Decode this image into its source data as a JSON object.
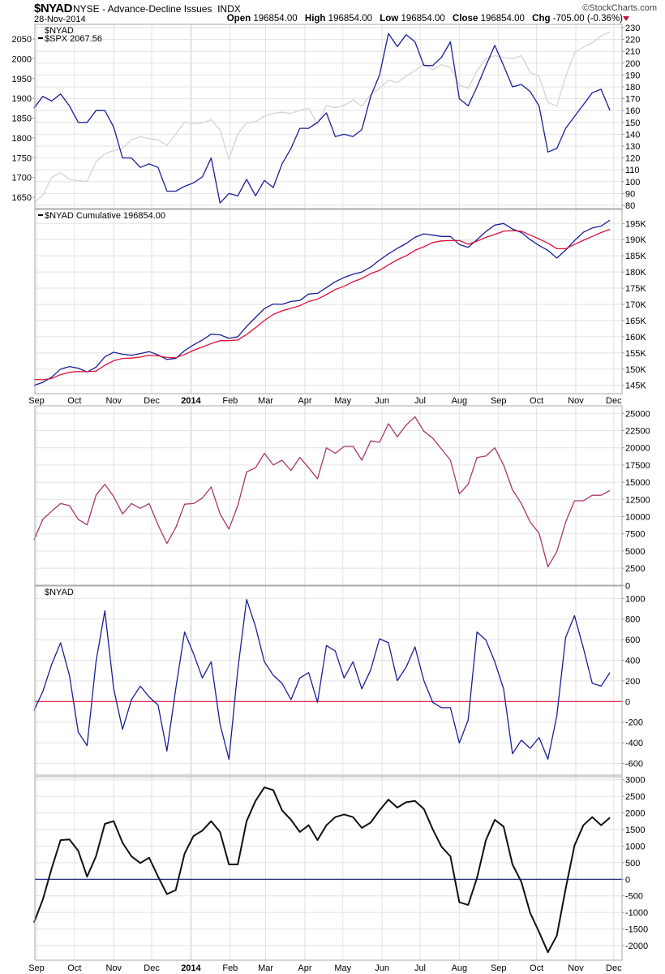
{
  "header": {
    "symbol": "$NYAD",
    "description": "NYSE - Advance-Decline Issues",
    "exchange": "INDX",
    "date": "28-Nov-2014",
    "brand": "©StockCharts.com",
    "quote": [
      {
        "label": "Open",
        "value": "196854.00"
      },
      {
        "label": "High",
        "value": "196854.00"
      },
      {
        "label": "Low",
        "value": "196854.00"
      },
      {
        "label": "Close",
        "value": "196854.00"
      },
      {
        "label": "Chg",
        "value": "-705.00 (-0.36%)"
      }
    ],
    "chg_direction": "down",
    "down_color": "#c0103a"
  },
  "x_axis": {
    "ticks": [
      {
        "label": "Sep",
        "date": "2013-09-01"
      },
      {
        "label": "Oct",
        "date": "2013-10-01"
      },
      {
        "label": "Nov",
        "date": "2013-11-01"
      },
      {
        "label": "Dec",
        "date": "2013-12-01"
      },
      {
        "label": "2014",
        "date": "2014-01-01",
        "bold": true
      },
      {
        "label": "Feb",
        "date": "2014-02-01"
      },
      {
        "label": "Mar",
        "date": "2014-03-01"
      },
      {
        "label": "Apr",
        "date": "2014-04-01"
      },
      {
        "label": "May",
        "date": "2014-05-01"
      },
      {
        "label": "Jun",
        "date": "2014-06-01"
      },
      {
        "label": "Jul",
        "date": "2014-07-01"
      },
      {
        "label": "Aug",
        "date": "2014-08-01"
      },
      {
        "label": "Sep",
        "date": "2014-09-01"
      },
      {
        "label": "Oct",
        "date": "2014-10-01"
      },
      {
        "label": "Nov",
        "date": "2014-11-01"
      },
      {
        "label": "Dec",
        "date": "2014-12-01"
      }
    ]
  },
  "chart_data": [
    {
      "type": "line",
      "legend": [
        {
          "text": "$NYAD",
          "marker": false
        },
        {
          "text": "$SPX 2067.56",
          "marker": true
        }
      ],
      "grid": true,
      "right_axis": {
        "ticks": [
          230,
          220,
          210,
          200,
          190,
          180,
          170,
          160,
          150,
          140,
          130,
          120,
          110,
          100,
          90,
          80
        ],
        "range": [
          80,
          230
        ]
      },
      "left_axis": {
        "ticks": [
          2050,
          2000,
          1950,
          1900,
          1850,
          1800,
          1750,
          1700,
          1650
        ],
        "range": [
          1650,
          2050
        ]
      },
      "dates": [
        "2013-08-30",
        "2013-09-06",
        "2013-09-13",
        "2013-09-20",
        "2013-09-27",
        "2013-10-04",
        "2013-10-11",
        "2013-10-18",
        "2013-10-25",
        "2013-11-01",
        "2013-11-08",
        "2013-11-15",
        "2013-11-22",
        "2013-11-29",
        "2013-12-06",
        "2013-12-13",
        "2013-12-20",
        "2013-12-27",
        "2014-01-03",
        "2014-01-10",
        "2014-01-17",
        "2014-01-24",
        "2014-01-31",
        "2014-02-07",
        "2014-02-14",
        "2014-02-21",
        "2014-02-28",
        "2014-03-07",
        "2014-03-14",
        "2014-03-21",
        "2014-03-28",
        "2014-04-04",
        "2014-04-11",
        "2014-04-18",
        "2014-04-25",
        "2014-05-02",
        "2014-05-09",
        "2014-05-16",
        "2014-05-23",
        "2014-05-30",
        "2014-06-06",
        "2014-06-13",
        "2014-06-20",
        "2014-06-27",
        "2014-07-04",
        "2014-07-11",
        "2014-07-18",
        "2014-07-25",
        "2014-08-01",
        "2014-08-08",
        "2014-08-15",
        "2014-08-22",
        "2014-08-29",
        "2014-09-05",
        "2014-09-12",
        "2014-09-19",
        "2014-09-26",
        "2014-10-03",
        "2014-10-10",
        "2014-10-17",
        "2014-10-24",
        "2014-10-31",
        "2014-11-07",
        "2014-11-14",
        "2014-11-21",
        "2014-11-28"
      ],
      "series": [
        {
          "name": "$SPX",
          "axis": "left",
          "color": "#d4d4d4",
          "values": [
            1636,
            1655,
            1700,
            1712,
            1695,
            1692,
            1690,
            1740,
            1760,
            1768,
            1774,
            1795,
            1803,
            1798,
            1795,
            1781,
            1810,
            1840,
            1836,
            1838,
            1846,
            1820,
            1746,
            1810,
            1838,
            1841,
            1855,
            1862,
            1865,
            1862,
            1870,
            1875,
            1835,
            1882,
            1876,
            1882,
            1896,
            1880,
            1910,
            1925,
            1946,
            1940,
            1956,
            1970,
            1987,
            1972,
            1985,
            1978,
            1933,
            1925,
            1970,
            2000,
            2008,
            2003,
            2000,
            2008,
            1965,
            1955,
            1890,
            1880,
            1955,
            2015,
            2030,
            2040,
            2058,
            2067.56
          ]
        },
        {
          "name": "$NYAD",
          "axis": "right",
          "color": "#1a1f96",
          "values": [
            162,
            172,
            168,
            174,
            164,
            150,
            150,
            160,
            160,
            146,
            120,
            120,
            112,
            115,
            112,
            92,
            92,
            96,
            99,
            104,
            120,
            82,
            90,
            88,
            102,
            88,
            101,
            95,
            115,
            128,
            145,
            145,
            150,
            158,
            138,
            140,
            138,
            144,
            172,
            190,
            225,
            214,
            224,
            218,
            198,
            198,
            205,
            218,
            170,
            164,
            180,
            198,
            215,
            198,
            180,
            182,
            176,
            164,
            125,
            128,
            145,
            155,
            165,
            175,
            178,
            160
          ]
        }
      ]
    },
    {
      "type": "line",
      "legend": [
        {
          "text": "$NYAD Cumulative 196854.00",
          "marker": true
        }
      ],
      "grid": true,
      "right_axis": {
        "ticks": [
          195000,
          190000,
          185000,
          180000,
          175000,
          170000,
          165000,
          160000,
          155000,
          150000,
          145000
        ],
        "labels": [
          "195K",
          "190K",
          "185K",
          "180K",
          "175K",
          "170K",
          "165K",
          "160K",
          "155K",
          "150K",
          "145K"
        ],
        "range": [
          145000,
          195000
        ]
      },
      "series": [
        {
          "color": "#1a1f96",
          "values": [
            145000,
            145900,
            147500,
            150000,
            150800,
            150300,
            149100,
            150600,
            153800,
            155200,
            154600,
            154300,
            154800,
            155400,
            154400,
            153000,
            153300,
            155700,
            157500,
            159000,
            160800,
            160600,
            159500,
            160000,
            163200,
            166000,
            168700,
            170100,
            170000,
            170900,
            171200,
            173200,
            173400,
            175200,
            177000,
            178300,
            179300,
            180000,
            181500,
            183700,
            185600,
            187300,
            188800,
            190700,
            191800,
            191400,
            191000,
            191000,
            188500,
            187600,
            190000,
            192500,
            194500,
            195000,
            193300,
            192200,
            190000,
            188200,
            186700,
            184300,
            186800,
            189700,
            192300,
            193600,
            194200,
            196000
          ]
        },
        {
          "color": "#e0103a",
          "values": [
            146800,
            146700,
            147100,
            148300,
            149000,
            149300,
            149200,
            149400,
            151200,
            152600,
            153300,
            153400,
            153700,
            154300,
            154100,
            153600,
            153500,
            154500,
            155800,
            156800,
            157900,
            158800,
            158800,
            159000,
            160700,
            162800,
            165000,
            166900,
            168000,
            168800,
            169600,
            170900,
            171600,
            173000,
            174600,
            175600,
            177000,
            178000,
            179500,
            180500,
            182200,
            183800,
            185000,
            186700,
            187800,
            189100,
            189600,
            189700,
            189700,
            188600,
            189500,
            190700,
            191600,
            192600,
            192800,
            192600,
            191400,
            190200,
            188900,
            187200,
            187200,
            188500,
            189800,
            191000,
            192200,
            193200
          ]
        }
      ]
    },
    {
      "type": "line",
      "legend": [],
      "grid": true,
      "zero_line_color": "#10186e",
      "right_axis": {
        "ticks": [
          25000,
          22500,
          20000,
          17500,
          15000,
          12500,
          10000,
          7500,
          5000,
          2500,
          0
        ],
        "range": [
          0,
          25000
        ]
      },
      "series": [
        {
          "color": "#a8386a",
          "values": [
            6600,
            9600,
            10800,
            11900,
            11600,
            9600,
            8800,
            13100,
            14700,
            12900,
            10400,
            11900,
            11200,
            11900,
            8800,
            6100,
            8400,
            11800,
            11900,
            12700,
            14300,
            10400,
            8200,
            11600,
            16500,
            17100,
            19200,
            17500,
            18200,
            16700,
            18600,
            17100,
            15500,
            20000,
            19200,
            20200,
            20200,
            18200,
            21000,
            20800,
            23500,
            21600,
            23300,
            24500,
            22400,
            21400,
            19800,
            18200,
            13300,
            14700,
            18600,
            18800,
            20000,
            17500,
            13900,
            11900,
            9200,
            7600,
            2700,
            4900,
            9200,
            12300,
            12300,
            13100,
            13100,
            13800
          ]
        }
      ]
    },
    {
      "type": "line",
      "legend": [
        {
          "text": "$NYAD",
          "marker": false
        }
      ],
      "grid": true,
      "zero_line_color": "#e0103a",
      "right_axis": {
        "ticks": [
          1000,
          800,
          600,
          400,
          200,
          0,
          -200,
          -400,
          -600
        ],
        "range": [
          -650,
          1000
        ]
      },
      "series": [
        {
          "color": "#1a1f96",
          "values": [
            -87,
            97,
            360,
            570,
            255,
            -297,
            -428,
            386,
            880,
            123,
            -270,
            18,
            150,
            45,
            -34,
            -480,
            123,
            675,
            465,
            228,
            386,
            -218,
            -560,
            307,
            990,
            727,
            386,
            255,
            176,
            18,
            228,
            280,
            -8,
            543,
            490,
            228,
            386,
            123,
            307,
            609,
            570,
            202,
            333,
            530,
            202,
            -8,
            -60,
            -60,
            -402,
            -178,
            675,
            596,
            386,
            123,
            -507,
            -375,
            -454,
            -349,
            -560,
            -139,
            622,
            832,
            517,
            176,
            150,
            281
          ]
        }
      ]
    },
    {
      "type": "line",
      "legend": [],
      "grid": true,
      "zero_line_color": "#10186e",
      "right_axis": {
        "ticks": [
          3000,
          2500,
          2000,
          1500,
          1000,
          500,
          0,
          -500,
          -1000,
          -1500,
          -2000
        ],
        "range": [
          -2450,
          3000
        ]
      },
      "series": [
        {
          "color": "#111111",
          "values": [
            -1304,
            -611,
            326,
            1182,
            1198,
            856,
            81,
            693,
            1671,
            1752,
            1100,
            693,
            489,
            652,
            81,
            -448,
            -326,
            774,
            1304,
            1467,
            1752,
            1426,
            448,
            448,
            1752,
            2363,
            2771,
            2690,
            2078,
            1793,
            1426,
            1630,
            1182,
            1630,
            1874,
            1956,
            1874,
            1548,
            1711,
            2078,
            2404,
            2160,
            2323,
            2363,
            2119,
            1508,
            978,
            693,
            -693,
            -774,
            41,
            1182,
            1793,
            1589,
            448,
            -81,
            -1019,
            -1589,
            -2200,
            -1700,
            -285,
            1019,
            1630,
            1874,
            1630,
            1858
          ]
        }
      ]
    }
  ]
}
